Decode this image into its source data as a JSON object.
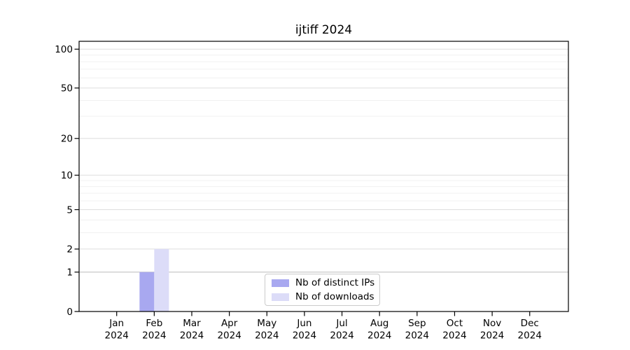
{
  "chart_data": {
    "type": "bar",
    "title": "ijtiff 2024",
    "categories": [
      "Jan",
      "Feb",
      "Mar",
      "Apr",
      "May",
      "Jun",
      "Jul",
      "Aug",
      "Sep",
      "Oct",
      "Nov",
      "Dec"
    ],
    "year": "2024",
    "series": [
      {
        "name": "Nb of distinct IPs",
        "color": "#a8a8f0",
        "values": [
          0,
          1,
          0,
          0,
          0,
          0,
          0,
          0,
          0,
          0,
          0,
          0
        ]
      },
      {
        "name": "Nb of downloads",
        "color": "#dcdcf8",
        "values": [
          0,
          2,
          0,
          0,
          0,
          0,
          0,
          0,
          0,
          0,
          0,
          0
        ]
      }
    ],
    "yscale": "log1p",
    "ylim": [
      0,
      115
    ],
    "y_ticks": [
      0,
      1,
      2,
      5,
      10,
      20,
      50,
      100
    ],
    "y_minor_ticks": [
      3,
      4,
      6,
      7,
      8,
      9,
      30,
      40,
      60,
      70,
      80,
      90
    ],
    "grid": "horizontal-only",
    "legend_position": "inside-bottom-center"
  }
}
